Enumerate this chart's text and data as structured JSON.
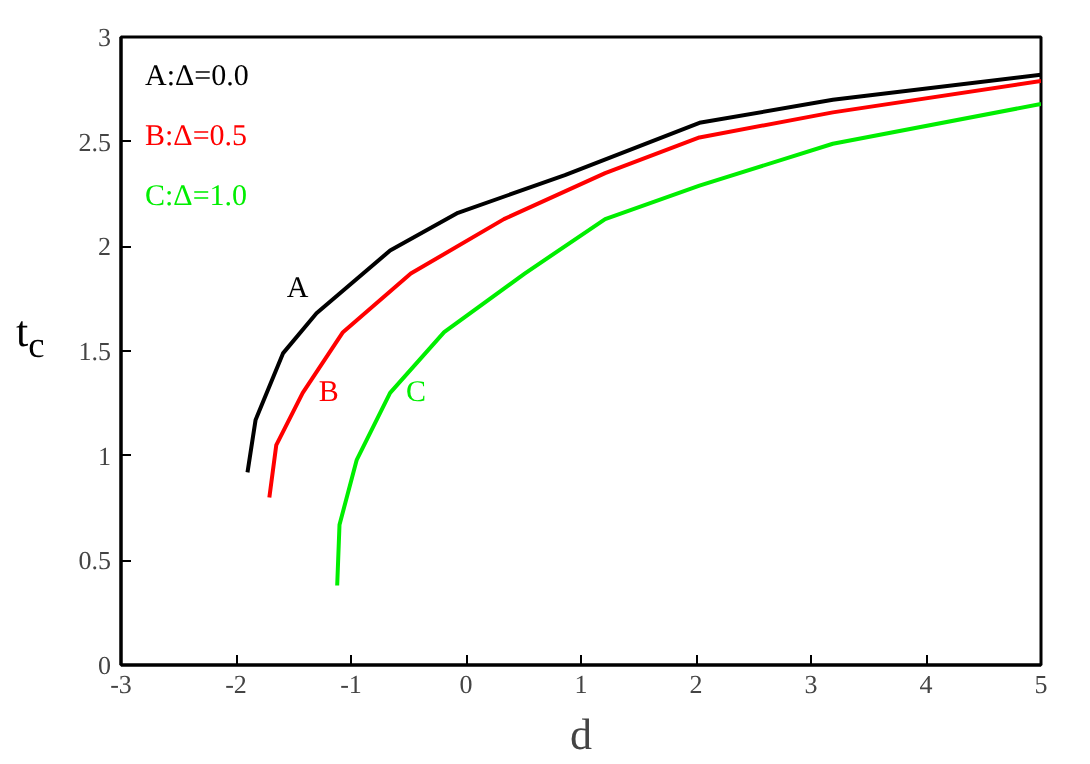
{
  "chart_data": {
    "type": "line",
    "xlabel": "d",
    "ylabel": "t$_{c}$",
    "xlim": [
      -3,
      5
    ],
    "ylim": [
      0,
      3
    ],
    "xticks": [
      -3,
      -2,
      -1,
      0,
      1,
      2,
      3,
      4,
      5
    ],
    "yticks": [
      0,
      0.5,
      1,
      1.5,
      2,
      2.5,
      3
    ],
    "legend": "top left",
    "grid": false,
    "series": [
      {
        "name": "A:Δ=0.0",
        "color": "#000000",
        "x": [
          -1.9,
          -1.83,
          -1.59,
          -1.3,
          -0.66,
          -0.07,
          0.86,
          2.03,
          3.19,
          5.0
        ],
        "values": [
          0.92,
          1.17,
          1.49,
          1.68,
          1.98,
          2.16,
          2.34,
          2.59,
          2.7,
          2.82
        ]
      },
      {
        "name": "B:Δ=0.5",
        "color": "#ff0000",
        "x": [
          -1.71,
          -1.65,
          -1.42,
          -1.07,
          -0.48,
          0.33,
          1.21,
          2.03,
          3.19,
          5.0
        ],
        "values": [
          0.8,
          1.05,
          1.3,
          1.59,
          1.87,
          2.13,
          2.35,
          2.52,
          2.64,
          2.79
        ]
      },
      {
        "name": "C:Δ=1.0",
        "color": "#00ee00",
        "x": [
          -1.12,
          -1.1,
          -0.95,
          -0.66,
          -0.19,
          0.51,
          1.21,
          2.03,
          3.19,
          5.0
        ],
        "values": [
          0.38,
          0.67,
          0.98,
          1.3,
          1.59,
          1.87,
          2.13,
          2.29,
          2.49,
          2.68
        ]
      }
    ],
    "annotations": [
      {
        "text": "A",
        "x": -1.3,
        "y": 1.68
      },
      {
        "text": "B",
        "x": -1.42,
        "y": 1.3
      },
      {
        "text": "C",
        "x": -0.66,
        "y": 1.3
      }
    ]
  }
}
